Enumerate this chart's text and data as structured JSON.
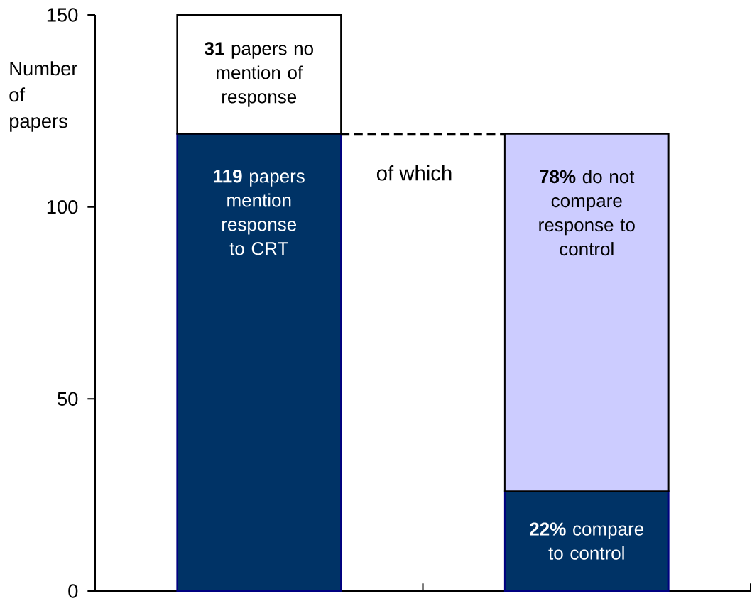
{
  "chart_data": {
    "type": "bar",
    "stacked": true,
    "categories": [
      null,
      null
    ],
    "series": [
      {
        "color": "#003366",
        "values": [
          119,
          26
        ],
        "value_labels": [
          "**119** papers mention response to CRT",
          null
        ]
      },
      {
        "colors": [
          "#ffffff",
          "#ccccff"
        ],
        "values": [
          31,
          93
        ],
        "value_labels": [
          "**31** papers no mention of response",
          null
        ]
      }
    ],
    "annotations": [
      "**78%** do not compare response to control",
      "**22%** compare to control"
    ],
    "ylabel": "Number of papers",
    "ylim": [
      0,
      150
    ],
    "yticks": [
      0,
      50,
      100,
      150
    ],
    "tick_labels": "y",
    "ref_lines": [
      {
        "axis": "y",
        "value": 119,
        "label": "of which",
        "color": "#000000",
        "line_style": "dashed"
      }
    ]
  }
}
